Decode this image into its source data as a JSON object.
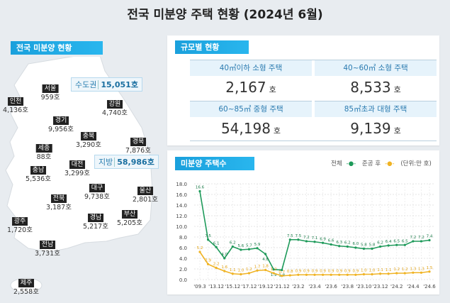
{
  "title": "전국 미분양 주택 현황 (2024년 6월)",
  "map_panel": {
    "header": "전국 미분양 현황",
    "capital": {
      "label": "수도권",
      "value": "15,051호"
    },
    "local": {
      "label": "지방",
      "value": "58,986호"
    },
    "regions": [
      {
        "name": "서울",
        "value": "959호"
      },
      {
        "name": "인천",
        "value": "4,136호"
      },
      {
        "name": "강원",
        "value": "4,740호"
      },
      {
        "name": "경기",
        "value": "9,956호"
      },
      {
        "name": "충북",
        "value": "3,290호"
      },
      {
        "name": "경북",
        "value": "7,876호"
      },
      {
        "name": "세종",
        "value": "88호"
      },
      {
        "name": "대전",
        "value": "3,299호"
      },
      {
        "name": "충남",
        "value": "5,536호"
      },
      {
        "name": "대구",
        "value": "9,738호"
      },
      {
        "name": "울산",
        "value": "2,801호"
      },
      {
        "name": "전북",
        "value": "3,187호"
      },
      {
        "name": "경남",
        "value": "5,217호"
      },
      {
        "name": "부산",
        "value": "5,205호"
      },
      {
        "name": "광주",
        "value": "1,720호"
      },
      {
        "name": "전남",
        "value": "3,731호"
      },
      {
        "name": "제주",
        "value": "2,558호"
      }
    ]
  },
  "size_panel": {
    "header": "규모별 현황",
    "unit": "호",
    "cells": [
      {
        "label": "40㎡이하 소형 주택",
        "value": "2,167"
      },
      {
        "label": "40~60㎡ 소형 주택",
        "value": "8,533"
      },
      {
        "label": "60~85㎡ 중형 주택",
        "value": "54,198"
      },
      {
        "label": "85㎡초과 대형 주택",
        "value": "9,139"
      }
    ]
  },
  "chart_panel": {
    "header": "미분양 주택수",
    "legend": {
      "total": "전체",
      "completed": "준공 후",
      "unit": "(단위:만 호)"
    }
  },
  "colors": {
    "total": "#1e9a5a",
    "completed": "#f0b323",
    "header": "#1aa0dc"
  },
  "chart_data": {
    "type": "line",
    "ylim": [
      0,
      18
    ],
    "yticks": [
      "0.0",
      "2.0",
      "4.0",
      "6.0",
      "8.0",
      "10.0",
      "12.0",
      "14.0",
      "16.0",
      "18.0"
    ],
    "xticklabels": [
      "'09.3",
      "'13.12",
      "'15.12",
      "'17.12",
      "'19.12",
      "'21.12",
      "'23.2",
      "'23.4",
      "'23.6",
      "'23.8",
      "'23.10",
      "'23.12",
      "'24.2",
      "'24.4",
      "'24.6"
    ],
    "series": [
      {
        "name": "전체",
        "values": [
          16.6,
          7.5,
          6.1,
          4.0,
          6.2,
          5.6,
          5.7,
          5.9,
          4.8,
          1.9,
          1.8,
          7.5,
          7.5,
          7.2,
          7.1,
          6.9,
          6.6,
          6.3,
          6.2,
          6.0,
          5.8,
          5.8,
          6.2,
          6.4,
          6.5,
          6.5,
          7.2,
          7.2,
          7.4
        ]
      },
      {
        "name": "준공 후",
        "values": [
          5.2,
          2.9,
          2.2,
          1.6,
          1.1,
          1.0,
          1.2,
          1.7,
          1.8,
          1.2,
          0.7,
          0.8,
          0.9,
          0.9,
          0.9,
          0.9,
          0.9,
          0.9,
          0.9,
          0.9,
          1.0,
          1.0,
          1.1,
          1.1,
          1.2,
          1.2,
          1.3,
          1.3,
          1.5
        ]
      }
    ]
  }
}
